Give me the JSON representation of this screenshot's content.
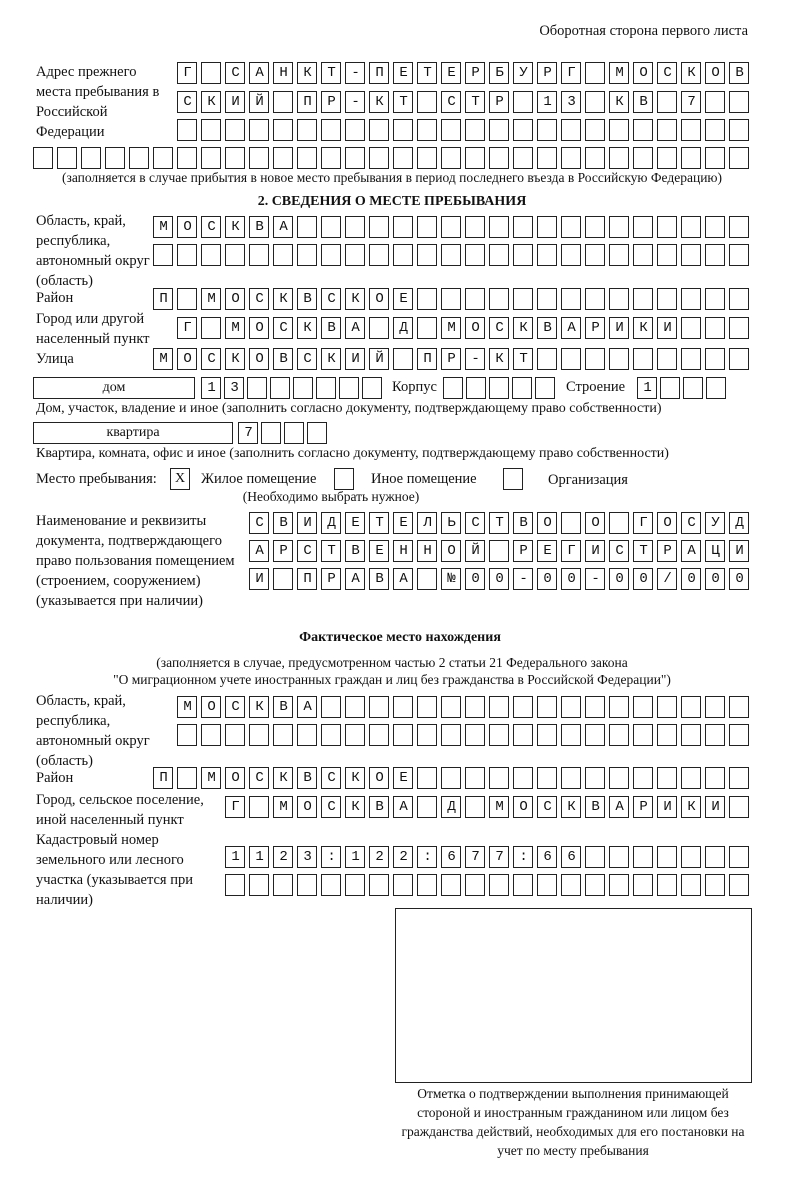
{
  "page_title": "Оборотная сторона первого листа",
  "prev_address": {
    "label": "Адрес прежнего места пребывания в Российской Федерации",
    "rows": [
      "Г САНКТ-ПЕТЕРБУРГ МОСКОВ",
      "СКИЙ ПР-КТ СТР 13 КВ 7  ",
      "                        ",
      "                              "
    ],
    "note": "(заполняется в случае прибытия в новое место пребывания в период последнего въезда в Российскую Федерацию)"
  },
  "section2": {
    "heading": "2. СВЕДЕНИЯ О МЕСТЕ ПРЕБЫВАНИЯ",
    "region_label": "Область, край, республика, автономный округ (область)",
    "region_rows": [
      "МОСКВА                   ",
      "                         "
    ],
    "district_label": "Район",
    "district_row": "П МОСКВСКОЕ              ",
    "city_label": "Город или другой населенный пункт",
    "city_row": "Г МОСКВА Д МОСКВАРИКИ   ",
    "street_label": "Улица",
    "street_row": "МОСКОВСКИЙ ПР-КТ         ",
    "house_type": "дом",
    "house_cells": "13      ",
    "korpus_label": "Корпус",
    "korpus_cells": "     ",
    "building_label": "Строение",
    "building_cells": "1   ",
    "house_note": "Дом, участок, владение и иное (заполнить согласно документу, подтверждающему право собственности)",
    "apt_type": "квартира",
    "apt_cells": "7   ",
    "apt_note": "Квартира, комната, офис и иное (заполнить согласно документу, подтверждающему право собственности)",
    "stay_place_label": "Место пребывания:",
    "options": [
      {
        "label": "Жилое помещение",
        "mark": "X",
        "checked": true
      },
      {
        "label": "Иное помещение",
        "mark": "",
        "checked": false
      },
      {
        "label": "Организация",
        "mark": "",
        "checked": false
      }
    ],
    "choose_note": "(Необходимо выбрать нужное)",
    "doc_label": "Наименование и реквизиты документа, подтверждающего право пользования помещением (строением, сооружением) (указывается при наличии)",
    "doc_rows": [
      "СВИДЕТЕЛЬСТВО О ГОСУД",
      "АРСТВЕННОЙ РЕГИСТРАЦИ",
      "И ПРАВА №00-00-00/000"
    ]
  },
  "actual": {
    "heading": "Фактическое место нахождения",
    "note1": "(заполняется в случае, предусмотренном частью 2 статьи 21 Федерального закона",
    "note2": "\"О миграционном учете иностранных граждан и лиц без гражданства в Российской Федерации\")",
    "region_label": "Область, край, республика, автономный округ (область)",
    "region_rows": [
      "МОСКВА                  ",
      "                        "
    ],
    "district_label": "Район",
    "district_row": "П МОСКВСКОЕ              ",
    "city_label": "Город, сельское поселение, иной населенный пункт",
    "city_row": "Г МОСКВА Д МОСКВАРИКИ ",
    "cadastre_label": "Кадастровый номер земельного или лесного участка (указывается при наличии)",
    "cadastre_rows": [
      "1123:122:677:66       ",
      "                      "
    ]
  },
  "confirmation": {
    "caption": "Отметка о подтверждении выполнения принимающей стороной и иностранным гражданином или лицом без гражданства действий, необходимых для его постановки на учет по месту пребывания"
  }
}
